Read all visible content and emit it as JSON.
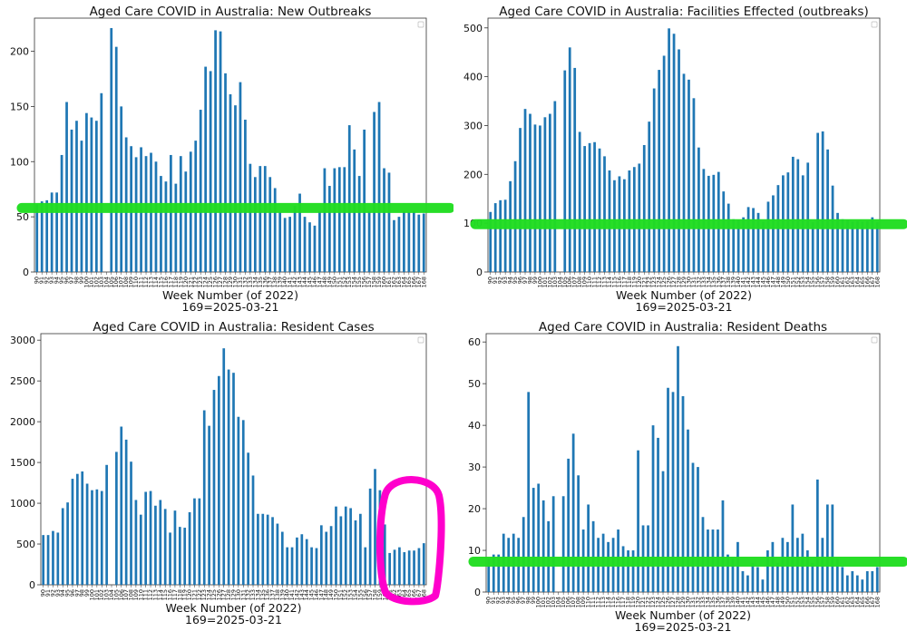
{
  "chart_data": [
    {
      "type": "bar",
      "title": "Aged Care COVID in Australia: New Outbreaks",
      "xlabel": "Week Number (of 2022)",
      "xlabel2": "169=2025-03-21",
      "ylabel": "",
      "ylim": [
        0,
        230
      ],
      "yticks": [
        0,
        50,
        100,
        150,
        200
      ],
      "bar_color": "#1f77b4",
      "legend": "top-right (empty)",
      "annotation": {
        "type": "green horizontal line",
        "y": 58,
        "color": "#22dd22"
      },
      "x": [
        90,
        91,
        92,
        93,
        94,
        95,
        96,
        97,
        98,
        99,
        100,
        101,
        102,
        103,
        104,
        105,
        106,
        107,
        108,
        109,
        110,
        111,
        112,
        113,
        114,
        115,
        116,
        117,
        118,
        119,
        120,
        121,
        122,
        123,
        124,
        125,
        126,
        127,
        128,
        129,
        130,
        131,
        132,
        133,
        134,
        135,
        136,
        137,
        138,
        139,
        140,
        141,
        142,
        143,
        144,
        145,
        146,
        147,
        148,
        149,
        150,
        151,
        152,
        153,
        154,
        155,
        156,
        157,
        158,
        159,
        160,
        161,
        162,
        163,
        164,
        165,
        166,
        167,
        168
      ],
      "values": [
        61,
        64,
        65,
        72,
        72,
        106,
        154,
        129,
        137,
        119,
        144,
        140,
        137,
        162,
        0,
        221,
        204,
        150,
        122,
        114,
        104,
        113,
        105,
        108,
        100,
        87,
        82,
        106,
        80,
        105,
        91,
        109,
        119,
        147,
        186,
        182,
        219,
        218,
        180,
        161,
        151,
        172,
        138,
        98,
        86,
        96,
        96,
        86,
        76,
        54,
        49,
        50,
        60,
        71,
        50,
        45,
        42,
        55,
        94,
        78,
        94,
        95,
        95,
        133,
        111,
        87,
        129,
        55,
        145,
        154,
        94,
        90,
        47,
        50,
        55,
        54,
        55,
        52,
        53
      ]
    },
    {
      "type": "bar",
      "title": "Aged Care COVID in Australia: Facilities Effected (outbreaks)",
      "xlabel": "Week Number (of 2022)",
      "xlabel2": "169=2025-03-21",
      "ylabel": "",
      "ylim": [
        0,
        520
      ],
      "yticks": [
        0,
        100,
        200,
        300,
        400,
        500
      ],
      "bar_color": "#1f77b4",
      "legend": "top-right (empty)",
      "annotation": {
        "type": "green horizontal line",
        "y": 98,
        "color": "#22dd22"
      },
      "x": [
        90,
        91,
        92,
        93,
        94,
        95,
        96,
        97,
        98,
        99,
        100,
        101,
        102,
        103,
        104,
        105,
        106,
        107,
        108,
        109,
        110,
        111,
        112,
        113,
        114,
        115,
        116,
        117,
        118,
        119,
        120,
        121,
        122,
        123,
        124,
        125,
        126,
        127,
        128,
        129,
        130,
        131,
        132,
        133,
        134,
        135,
        136,
        137,
        138,
        139,
        140,
        141,
        142,
        143,
        144,
        145,
        146,
        147,
        148,
        149,
        150,
        151,
        152,
        153,
        154,
        155,
        156,
        157,
        158,
        159,
        160,
        161,
        162,
        163,
        164,
        165,
        166,
        167,
        168
      ],
      "values": [
        123,
        141,
        147,
        148,
        186,
        227,
        295,
        334,
        324,
        302,
        300,
        317,
        324,
        350,
        0,
        413,
        460,
        418,
        287,
        258,
        264,
        266,
        253,
        237,
        208,
        188,
        196,
        190,
        208,
        215,
        222,
        260,
        308,
        376,
        414,
        443,
        499,
        488,
        456,
        406,
        394,
        356,
        255,
        211,
        197,
        199,
        205,
        165,
        140,
        108,
        106,
        112,
        133,
        131,
        121,
        103,
        144,
        157,
        178,
        198,
        204,
        236,
        231,
        198,
        224,
        102,
        285,
        288,
        251,
        177,
        121,
        108,
        106,
        103,
        104,
        103,
        104,
        112,
        102
      ]
    },
    {
      "type": "bar",
      "title": "Aged Care COVID in Australia: Resident Cases",
      "xlabel": "Week Number (of 2022)",
      "xlabel2": "169=2025-03-21",
      "ylabel": "",
      "ylim": [
        0,
        3080
      ],
      "yticks": [
        0,
        500,
        1000,
        1500,
        2000,
        2500,
        3000
      ],
      "bar_color": "#1f77b4",
      "legend": "top-right (empty)",
      "annotation": {
        "type": "magenta circled region",
        "color": "#ff00cc",
        "around_x": [
          161,
          168
        ]
      },
      "x": [
        90,
        91,
        92,
        93,
        94,
        95,
        96,
        97,
        98,
        99,
        100,
        101,
        102,
        103,
        104,
        105,
        106,
        107,
        108,
        109,
        110,
        111,
        112,
        113,
        114,
        115,
        116,
        117,
        118,
        119,
        120,
        121,
        122,
        123,
        124,
        125,
        126,
        127,
        128,
        129,
        130,
        131,
        132,
        133,
        134,
        135,
        136,
        137,
        138,
        139,
        140,
        141,
        142,
        143,
        144,
        145,
        146,
        147,
        148,
        149,
        150,
        151,
        152,
        153,
        154,
        155,
        156,
        157,
        158,
        159,
        160,
        161,
        162,
        163,
        164,
        165,
        166,
        167,
        168
      ],
      "values": [
        610,
        610,
        660,
        640,
        940,
        1010,
        1300,
        1360,
        1390,
        1240,
        1160,
        1170,
        1150,
        1470,
        0,
        1630,
        1940,
        1780,
        1510,
        1040,
        860,
        1140,
        1150,
        970,
        1040,
        930,
        640,
        910,
        710,
        700,
        890,
        1060,
        1060,
        2140,
        1950,
        2390,
        2560,
        2900,
        2640,
        2600,
        2060,
        2020,
        1620,
        1340,
        870,
        870,
        860,
        830,
        750,
        650,
        460,
        460,
        580,
        620,
        560,
        460,
        450,
        730,
        650,
        720,
        960,
        840,
        960,
        940,
        790,
        870,
        460,
        1180,
        1420,
        1160,
        740,
        390,
        430,
        460,
        400,
        420,
        420,
        450,
        510
      ]
    },
    {
      "type": "bar",
      "title": "Aged Care COVID in Australia: Resident Deaths",
      "xlabel": "Week Number (of 2022)",
      "xlabel2": "169=2025-03-21",
      "ylabel": "",
      "ylim": [
        0,
        62
      ],
      "yticks": [
        0,
        10,
        20,
        30,
        40,
        50,
        60
      ],
      "bar_color": "#1f77b4",
      "legend": "top-right (empty)",
      "annotation": {
        "type": "green horizontal line",
        "y": 7.3,
        "color": "#22dd22"
      },
      "x": [
        90,
        91,
        92,
        93,
        94,
        95,
        96,
        97,
        98,
        99,
        100,
        101,
        102,
        103,
        104,
        105,
        106,
        107,
        108,
        109,
        110,
        111,
        112,
        113,
        114,
        115,
        116,
        117,
        118,
        119,
        120,
        121,
        122,
        123,
        124,
        125,
        126,
        127,
        128,
        129,
        130,
        131,
        132,
        133,
        134,
        135,
        136,
        137,
        138,
        139,
        140,
        141,
        142,
        143,
        144,
        145,
        146,
        147,
        148,
        149,
        150,
        151,
        152,
        153,
        154,
        155,
        156,
        157,
        158,
        159,
        160,
        161,
        162,
        163,
        164,
        165,
        166,
        167,
        168
      ],
      "values": [
        8,
        9,
        9,
        14,
        13,
        14,
        13,
        18,
        48,
        25,
        26,
        22,
        17,
        23,
        0,
        23,
        32,
        38,
        28,
        15,
        21,
        17,
        13,
        14,
        12,
        13,
        15,
        11,
        10,
        10,
        34,
        16,
        16,
        40,
        37,
        29,
        49,
        48,
        59,
        47,
        39,
        31,
        30,
        18,
        15,
        15,
        15,
        22,
        9,
        8,
        12,
        5,
        4,
        7,
        6,
        3,
        10,
        12,
        7,
        13,
        12,
        21,
        13,
        14,
        10,
        7,
        27,
        13,
        21,
        21,
        8,
        6,
        4,
        5,
        4,
        3,
        5,
        5,
        6
      ]
    }
  ]
}
